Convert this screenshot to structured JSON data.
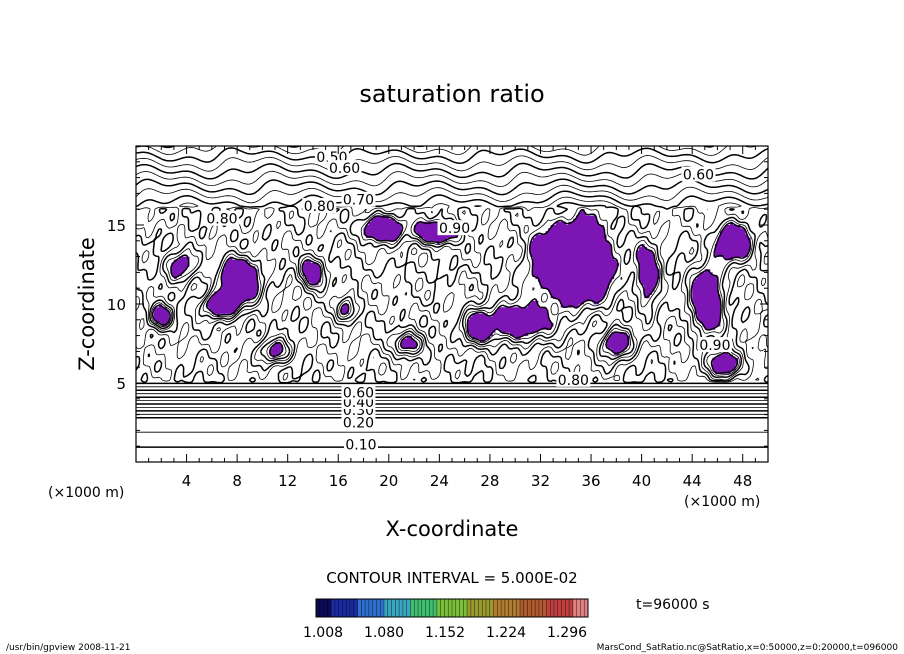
{
  "chart_data": {
    "type": "contour",
    "title": "saturation ratio",
    "xlabel": "X-coordinate",
    "ylabel": "Z-coordinate",
    "x_unit": "(×1000 m)",
    "y_unit": "(×1000 m)",
    "xlim": [
      0,
      50
    ],
    "ylim": [
      0,
      20
    ],
    "x_ticks": [
      4,
      8,
      12,
      16,
      20,
      24,
      28,
      32,
      36,
      40,
      44,
      48
    ],
    "y_ticks": [
      5,
      10,
      15
    ],
    "contour_interval_label": "CONTOUR INTERVAL = 5.000E-02",
    "time_label": "t=96000 s",
    "contour_labels": [
      {
        "text": "0.10",
        "x": 17.8,
        "z": 1.1
      },
      {
        "text": "0.20",
        "x": 17.6,
        "z": 2.5
      },
      {
        "text": "0.30",
        "x": 17.6,
        "z": 3.3
      },
      {
        "text": "0.40",
        "x": 17.6,
        "z": 3.8
      },
      {
        "text": "0.60",
        "x": 17.6,
        "z": 4.4
      },
      {
        "text": "0.50",
        "x": 15.5,
        "z": 19.3
      },
      {
        "text": "0.60",
        "x": 16.5,
        "z": 18.6
      },
      {
        "text": "0.60",
        "x": 44.5,
        "z": 18.2
      },
      {
        "text": "0.70",
        "x": 17.6,
        "z": 16.6
      },
      {
        "text": "0.80",
        "x": 14.5,
        "z": 16.2
      },
      {
        "text": "0.80",
        "x": 6.8,
        "z": 15.4
      },
      {
        "text": "0.80",
        "x": 34.6,
        "z": 5.2
      },
      {
        "text": "0.90",
        "x": 45.8,
        "z": 7.4
      },
      {
        "text": "0.90",
        "x": 25.2,
        "z": 14.8
      }
    ],
    "supersaturated_regions": {
      "threshold": 1.0,
      "color": "#7b16b5"
    },
    "colorbar": {
      "tick_labels": [
        "1.008",
        "1.080",
        "1.152",
        "1.224",
        "1.296"
      ],
      "colors": [
        "#0b0b55",
        "#1a2aa0",
        "#2f6fd0",
        "#3aa6c0",
        "#3fbf70",
        "#7abf3a",
        "#9a9a30",
        "#b07a30",
        "#b05a30",
        "#c04040",
        "#e08080"
      ]
    },
    "grid": false
  },
  "footer": {
    "program": "/usr/bin/gpview   2008-11-21",
    "source": "MarsCond_SatRatio.nc@SatRatio,x=0:50000,z=0:20000,t=096000"
  }
}
